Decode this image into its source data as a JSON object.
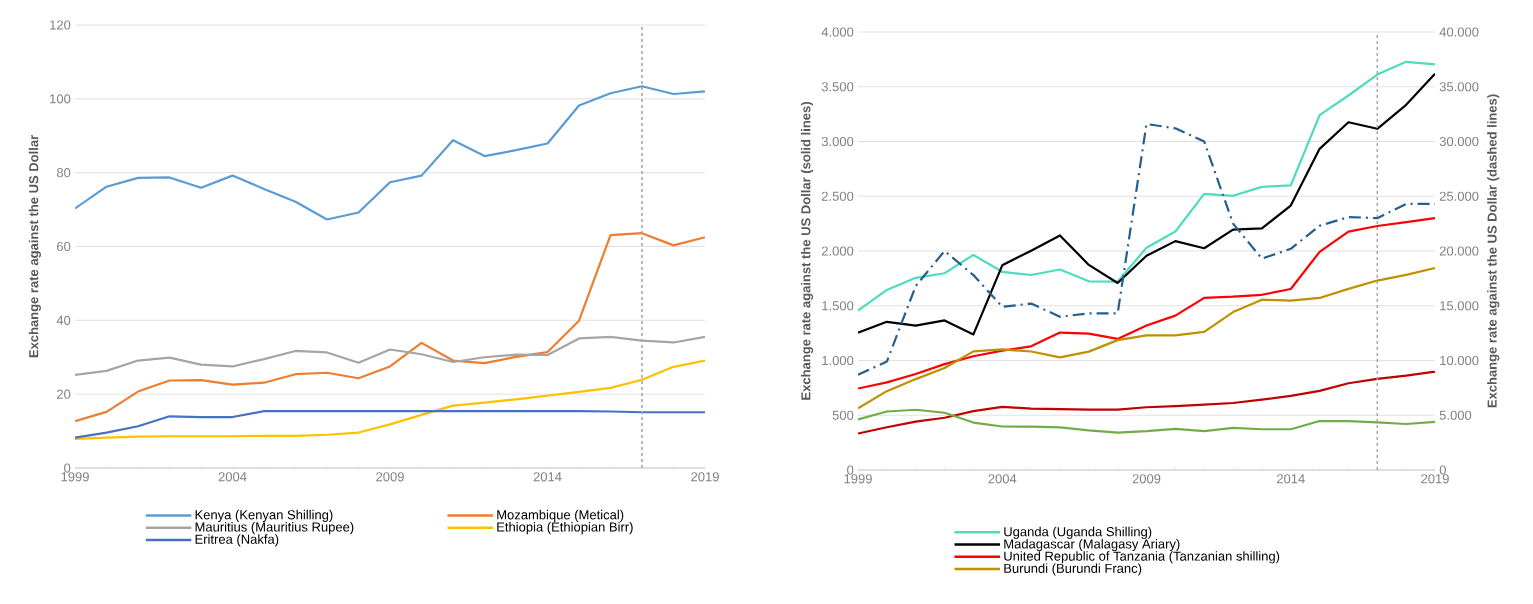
{
  "chart_data": [
    {
      "type": "line",
      "ylabel": "Exchange rate against the US Dollar",
      "x": [
        1999,
        2000,
        2001,
        2002,
        2003,
        2004,
        2005,
        2006,
        2007,
        2008,
        2009,
        2010,
        2011,
        2012,
        2013,
        2014,
        2015,
        2016,
        2017,
        2018,
        2019
      ],
      "xlim": [
        1999,
        2019
      ],
      "xticks": [
        1999,
        2004,
        2009,
        2014,
        2019
      ],
      "ylim": [
        0,
        120
      ],
      "yticks": [
        0,
        20,
        40,
        60,
        80,
        100,
        120
      ],
      "grid": "y",
      "legend": "bottom",
      "marker": "none",
      "ref_lines": [
        {
          "axis": "x",
          "value": 2017,
          "color": "#a6a6a6",
          "line_style": "dashed"
        }
      ],
      "series": [
        {
          "name": "Kenya (Kenyan Shilling)",
          "color": "#5b9bd5",
          "values": [
            70.3,
            76.2,
            78.6,
            78.7,
            75.9,
            79.2,
            75.6,
            72.1,
            67.3,
            69.2,
            77.4,
            79.2,
            88.8,
            84.5,
            86.1,
            87.9,
            98.2,
            101.5,
            103.4,
            101.3,
            102.0
          ]
        },
        {
          "name": "Mozambique (Metical)",
          "color": "#ed7d31",
          "values": [
            12.7,
            15.2,
            20.7,
            23.7,
            23.8,
            22.6,
            23.1,
            25.4,
            25.8,
            24.3,
            27.5,
            33.9,
            29.1,
            28.4,
            30.1,
            31.4,
            39.9,
            63.1,
            63.6,
            60.3,
            62.5
          ]
        },
        {
          "name": "Mauritius (Mauritius Rupee)",
          "color": "#a5a5a5",
          "values": [
            25.2,
            26.3,
            29.1,
            29.9,
            28.0,
            27.5,
            29.5,
            31.7,
            31.3,
            28.5,
            32.1,
            30.8,
            28.7,
            30.0,
            30.7,
            30.6,
            35.1,
            35.5,
            34.5,
            34.0,
            35.5
          ]
        },
        {
          "name": "Ethiopia (Ethiopian Birr)",
          "color": "#ffc000",
          "values": [
            7.9,
            8.2,
            8.5,
            8.6,
            8.6,
            8.6,
            8.7,
            8.7,
            9.0,
            9.6,
            11.8,
            14.4,
            16.9,
            17.7,
            18.6,
            19.6,
            20.6,
            21.7,
            23.9,
            27.4,
            29.1
          ]
        },
        {
          "name": "Eritrea (Nakfa)",
          "color": "#4472c4",
          "values": [
            8.2,
            9.6,
            11.3,
            14.0,
            13.8,
            13.8,
            15.4,
            15.4,
            15.4,
            15.4,
            15.4,
            15.4,
            15.4,
            15.4,
            15.4,
            15.4,
            15.4,
            15.3,
            15.1,
            15.1,
            15.1
          ]
        }
      ]
    },
    {
      "type": "line",
      "ylabel": "Exchange rate against the US Dollar (solid lines)",
      "y2label": "Exchange rate against the US Dollar (dashed lines)",
      "x": [
        1999,
        2000,
        2001,
        2002,
        2003,
        2004,
        2005,
        2006,
        2007,
        2008,
        2009,
        2010,
        2011,
        2012,
        2013,
        2014,
        2015,
        2016,
        2017,
        2018,
        2019
      ],
      "xlim": [
        1999,
        2019
      ],
      "xticks": [
        1999,
        2004,
        2009,
        2014,
        2019
      ],
      "ylim": [
        0,
        4000
      ],
      "yticks": [
        0,
        {
          "value": 500,
          "label": "500"
        },
        {
          "value": 1000,
          "label": "1.000"
        },
        {
          "value": 1500,
          "label": "1.500"
        },
        {
          "value": 2000,
          "label": "2.000"
        },
        {
          "value": 2500,
          "label": "2.500"
        },
        {
          "value": 3000,
          "label": "3.000"
        },
        {
          "value": 3500,
          "label": "3.500"
        },
        {
          "value": 4000,
          "label": "4.000"
        }
      ],
      "y2lim": [
        0,
        40000
      ],
      "y2ticks": [
        0,
        {
          "value": 5000,
          "label": "5.000"
        },
        {
          "value": 10000,
          "label": "10.000"
        },
        {
          "value": 15000,
          "label": "15.000"
        },
        {
          "value": 20000,
          "label": "20.000"
        },
        {
          "value": 25000,
          "label": "25.000"
        },
        {
          "value": 30000,
          "label": "30.000"
        },
        {
          "value": 35000,
          "label": "35.000"
        },
        {
          "value": 40000,
          "label": "40.000"
        }
      ],
      "grid": "y",
      "legend": "bottom",
      "marker": "none",
      "ref_lines": [
        {
          "axis": "x",
          "value": 2017,
          "color": "#a6a6a6",
          "line_style": "dashed"
        }
      ],
      "series": [
        {
          "name": "Uganda (Uganda Shilling)",
          "color": "#4fdbbf",
          "values": [
            1455,
            1644,
            1755,
            1797,
            1964,
            1810,
            1781,
            1831,
            1723,
            1720,
            2030,
            2178,
            2522,
            2504,
            2586,
            2600,
            3240,
            3420,
            3611,
            3728,
            3705
          ]
        },
        {
          "name": "Madagascar (Malagasy Ariary)",
          "color": "#000000",
          "values": [
            1254,
            1353,
            1318,
            1366,
            1238,
            1869,
            2003,
            2142,
            1873,
            1708,
            1956,
            2090,
            2025,
            2195,
            2206,
            2415,
            2933,
            3176,
            3116,
            3335,
            3618
          ]
        },
        {
          "name": "United Republic of Tanzania (Tanzanian shilling)",
          "color": "#ff0000",
          "values": [
            744,
            800,
            876,
            967,
            1039,
            1090,
            1129,
            1255,
            1245,
            1197,
            1320,
            1410,
            1572,
            1583,
            1600,
            1653,
            1992,
            2177,
            2228,
            2264,
            2300
          ]
        },
        {
          "name": "Burundi (Burundi Franc)",
          "color": "#bf9000",
          "values": [
            563,
            720,
            830,
            931,
            1083,
            1101,
            1082,
            1029,
            1081,
            1186,
            1230,
            1230,
            1261,
            1442,
            1555,
            1547,
            1571,
            1654,
            1730,
            1782,
            1845
          ]
        },
        {
          "color": "#c00000",
          "values": [
            333,
            390,
            442,
            477,
            537,
            577,
            560,
            556,
            552,
            551,
            573,
            583,
            597,
            612,
            643,
            677,
            723,
            792,
            832,
            862,
            899
          ]
        },
        {
          "color": "#70ad47",
          "values": [
            461,
            534,
            550,
            523,
            433,
            397,
            396,
            390,
            362,
            342,
            355,
            375,
            355,
            385,
            372,
            372,
            447,
            447,
            435,
            420,
            440
          ]
        },
        {
          "color": "#255e91",
          "axis": "y2",
          "line_style": "dashed",
          "values": [
            8700,
            9900,
            16800,
            20000,
            17800,
            14900,
            15200,
            14000,
            14300,
            14300,
            31600,
            31200,
            30000,
            22500,
            19300,
            20200,
            22300,
            23100,
            23000,
            24300,
            24300
          ]
        }
      ]
    }
  ]
}
